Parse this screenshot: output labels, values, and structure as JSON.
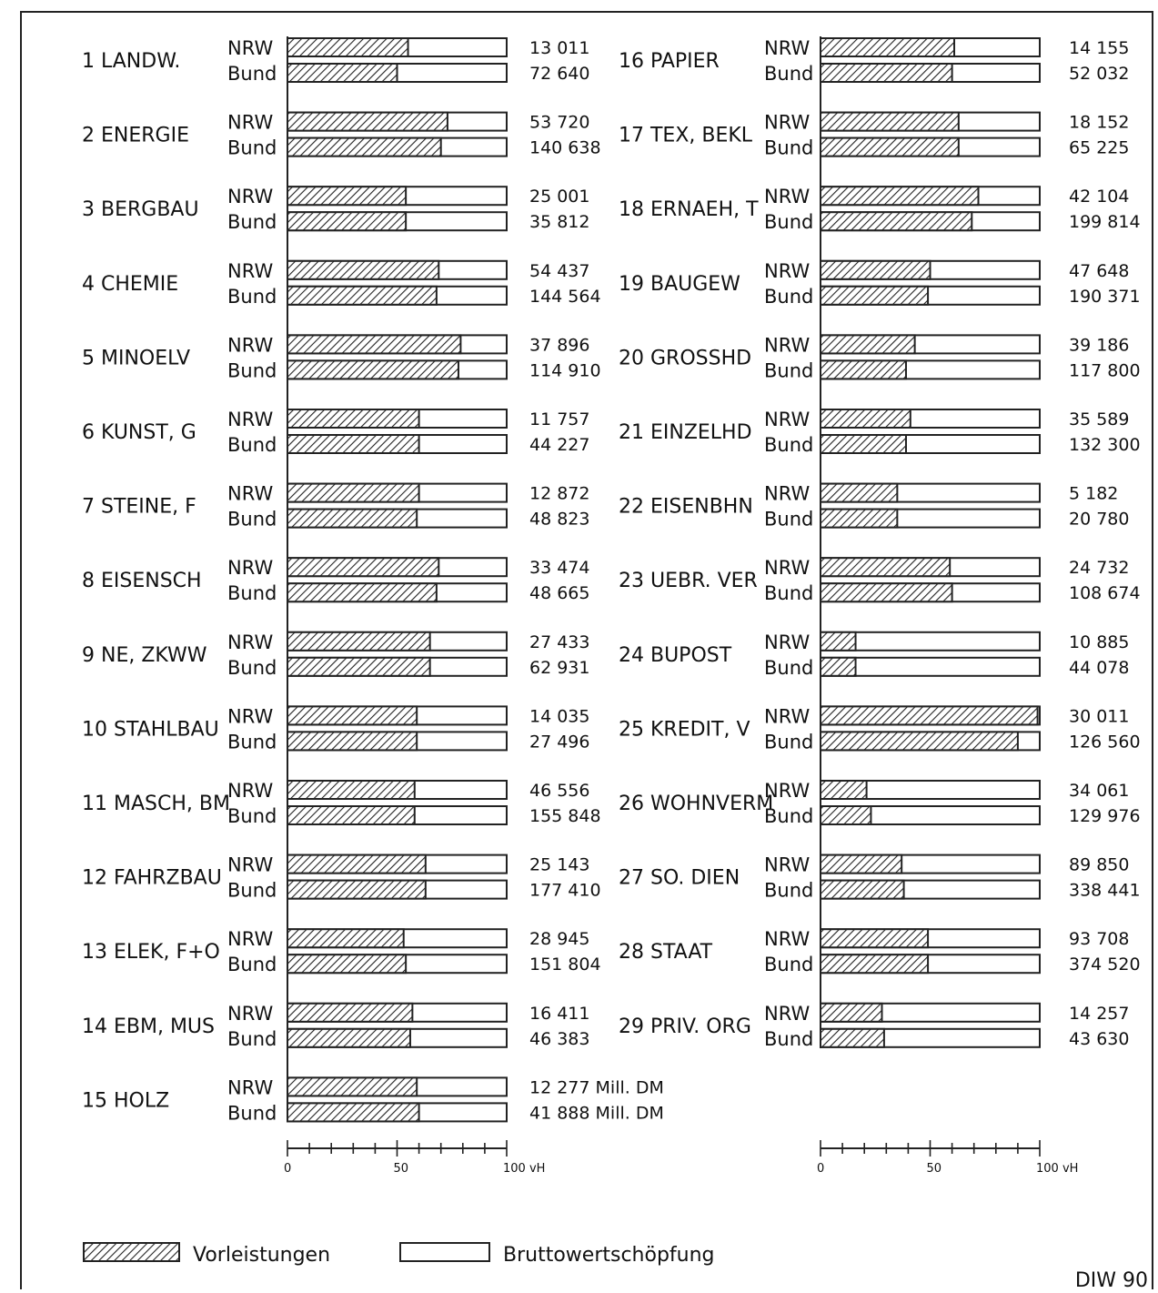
{
  "chart_data": {
    "type": "bar",
    "stacked_percent": true,
    "xlim": [
      0,
      100
    ],
    "x_ticks": [
      "0",
      "50",
      "100 vH"
    ],
    "legend": [
      {
        "name": "Vorleistungen",
        "pattern": "hatched"
      },
      {
        "name": "Bruttowertschöpfung",
        "pattern": "empty"
      }
    ],
    "source": "DIW 90",
    "unit_suffix": "Mill. DM",
    "sectors": [
      {
        "label": "1 LANDW.",
        "nrw_share": 55,
        "bund_share": 50,
        "nrw_total": "13 011",
        "bund_total": "72 640"
      },
      {
        "label": "2 ENERGIE",
        "nrw_share": 73,
        "bund_share": 70,
        "nrw_total": "53 720",
        "bund_total": "140 638"
      },
      {
        "label": "3 BERGBAU",
        "nrw_share": 54,
        "bund_share": 54,
        "nrw_total": "25 001",
        "bund_total": "35 812"
      },
      {
        "label": "4 CHEMIE",
        "nrw_share": 69,
        "bund_share": 68,
        "nrw_total": "54 437",
        "bund_total": "144 564"
      },
      {
        "label": "5 MINOELV",
        "nrw_share": 79,
        "bund_share": 78,
        "nrw_total": "37 896",
        "bund_total": "114 910"
      },
      {
        "label": "6 KUNST, G",
        "nrw_share": 60,
        "bund_share": 60,
        "nrw_total": "11 757",
        "bund_total": "44 227"
      },
      {
        "label": "7 STEINE, F",
        "nrw_share": 60,
        "bund_share": 59,
        "nrw_total": "12 872",
        "bund_total": "48 823"
      },
      {
        "label": "8 EISENSCH",
        "nrw_share": 69,
        "bund_share": 68,
        "nrw_total": "33 474",
        "bund_total": "48 665"
      },
      {
        "label": "9 NE, ZKWW",
        "nrw_share": 65,
        "bund_share": 65,
        "nrw_total": "27 433",
        "bund_total": "62 931"
      },
      {
        "label": "10 STAHLBAU",
        "nrw_share": 59,
        "bund_share": 59,
        "nrw_total": "14 035",
        "bund_total": "27 496"
      },
      {
        "label": "11 MASCH, BM",
        "nrw_share": 58,
        "bund_share": 58,
        "nrw_total": "46 556",
        "bund_total": "155 848"
      },
      {
        "label": "12 FAHRZBAU",
        "nrw_share": 63,
        "bund_share": 63,
        "nrw_total": "25 143",
        "bund_total": "177 410"
      },
      {
        "label": "13 ELEK, F+O",
        "nrw_share": 53,
        "bund_share": 54,
        "nrw_total": "28 945",
        "bund_total": "151 804"
      },
      {
        "label": "14 EBM, MUS",
        "nrw_share": 57,
        "bund_share": 56,
        "nrw_total": "16 411",
        "bund_total": "46 383"
      },
      {
        "label": "15 HOLZ",
        "nrw_share": 59,
        "bund_share": 60,
        "nrw_total": "12 277 Mill. DM",
        "bund_total": "41 888 Mill. DM"
      },
      {
        "label": "16 PAPIER",
        "nrw_share": 61,
        "bund_share": 60,
        "nrw_total": "14 155",
        "bund_total": "52 032"
      },
      {
        "label": "17 TEX, BEKL",
        "nrw_share": 63,
        "bund_share": 63,
        "nrw_total": "18 152",
        "bund_total": "65 225"
      },
      {
        "label": "18 ERNAEH, T",
        "nrw_share": 72,
        "bund_share": 69,
        "nrw_total": "42 104",
        "bund_total": "199 814"
      },
      {
        "label": "19 BAUGEW",
        "nrw_share": 50,
        "bund_share": 49,
        "nrw_total": "47 648",
        "bund_total": "190 371"
      },
      {
        "label": "20 GROSSHD",
        "nrw_share": 43,
        "bund_share": 39,
        "nrw_total": "39 186",
        "bund_total": "117 800"
      },
      {
        "label": "21 EINZELHD",
        "nrw_share": 41,
        "bund_share": 39,
        "nrw_total": "35 589",
        "bund_total": "132 300"
      },
      {
        "label": "22 EISENBHN",
        "nrw_share": 35,
        "bund_share": 35,
        "nrw_total": "5 182",
        "bund_total": "20 780"
      },
      {
        "label": "23 UEBR. VER",
        "nrw_share": 59,
        "bund_share": 60,
        "nrw_total": "24 732",
        "bund_total": "108 674"
      },
      {
        "label": "24 BUPOST",
        "nrw_share": 16,
        "bund_share": 16,
        "nrw_total": "10 885",
        "bund_total": "44 078"
      },
      {
        "label": "25 KREDIT, V",
        "nrw_share": 99,
        "bund_share": 90,
        "nrw_total": "30 011",
        "bund_total": "126 560"
      },
      {
        "label": "26 WOHNVERM",
        "nrw_share": 21,
        "bund_share": 23,
        "nrw_total": "34 061",
        "bund_total": "129 976"
      },
      {
        "label": "27 SO. DIEN",
        "nrw_share": 37,
        "bund_share": 38,
        "nrw_total": "89 850",
        "bund_total": "338 441"
      },
      {
        "label": "28 STAAT",
        "nrw_share": 49,
        "bund_share": 49,
        "nrw_total": "93 708",
        "bund_total": "374 520"
      },
      {
        "label": "29 PRIV. ORG",
        "nrw_share": 28,
        "bund_share": 29,
        "nrw_total": "14 257",
        "bund_total": "43 630"
      }
    ],
    "region_labels": {
      "nrw": "NRW",
      "bund": "Bund"
    }
  }
}
